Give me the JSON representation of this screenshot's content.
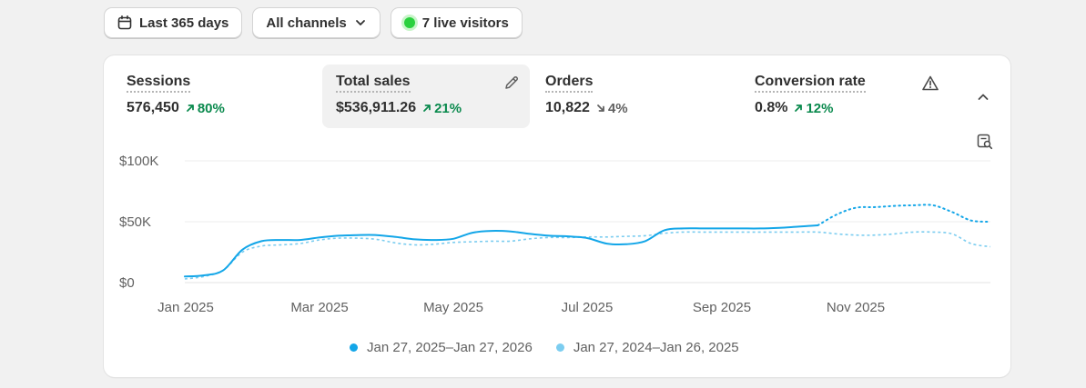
{
  "toolbar": {
    "date_range_label": "Last 365 days",
    "channels_label": "All channels",
    "live_visitors_label": "7 live visitors"
  },
  "metrics": [
    {
      "label": "Sessions",
      "value": "576,450",
      "delta": "80%",
      "trend": "up"
    },
    {
      "label": "Total sales",
      "value": "$536,911.26",
      "delta": "21%",
      "trend": "up"
    },
    {
      "label": "Orders",
      "value": "10,822",
      "delta": "4%",
      "trend": "down"
    },
    {
      "label": "Conversion rate",
      "value": "0.8%",
      "delta": "12%",
      "trend": "up"
    }
  ],
  "colors": {
    "current_series": "#13a6e8",
    "previous_series": "#7ccdf0",
    "positive": "#0b8a4e",
    "live_dot": "#2ad13e"
  },
  "chart_data": {
    "type": "line",
    "title": "Total sales",
    "x_tick_labels": [
      "Jan 2025",
      "Mar 2025",
      "May 2025",
      "Jul 2025",
      "Sep 2025",
      "Nov 2025"
    ],
    "x_start": "Jan 2025",
    "x_end": "Jan 2026",
    "ylim": [
      0,
      100000
    ],
    "y_ticks": [
      0,
      50000,
      100000
    ],
    "y_tick_labels": [
      "$0",
      "$50K",
      "$100K"
    ],
    "grid": true,
    "series": [
      {
        "name": "Jan 27, 2025–Jan 27, 2026",
        "style": "solid, dotted at end",
        "dotted_from_index": 33,
        "values": [
          5000,
          6000,
          10000,
          27000,
          34000,
          35000,
          35000,
          37000,
          38500,
          39000,
          39000,
          37500,
          35500,
          35000,
          36000,
          41000,
          42500,
          42000,
          40000,
          38500,
          38000,
          36500,
          32000,
          31500,
          34000,
          43000,
          44500,
          44500,
          44500,
          44500,
          44500,
          45000,
          46000,
          47000,
          56000,
          61500,
          62000,
          63000,
          63500,
          63500,
          58000,
          51000,
          50000
        ]
      },
      {
        "name": "Jan 27, 2024–Jan 26, 2025",
        "style": "dashed",
        "values": [
          3000,
          5000,
          10000,
          25000,
          30000,
          31000,
          32000,
          35000,
          36500,
          36500,
          35500,
          32500,
          31000,
          31500,
          33000,
          33500,
          34000,
          34000,
          36000,
          37000,
          37000,
          37500,
          37500,
          38000,
          38500,
          40500,
          41500,
          41500,
          41500,
          41500,
          41500,
          41500,
          41500,
          41500,
          40000,
          39000,
          39000,
          40000,
          41500,
          41500,
          40000,
          32000,
          29500
        ]
      }
    ]
  }
}
